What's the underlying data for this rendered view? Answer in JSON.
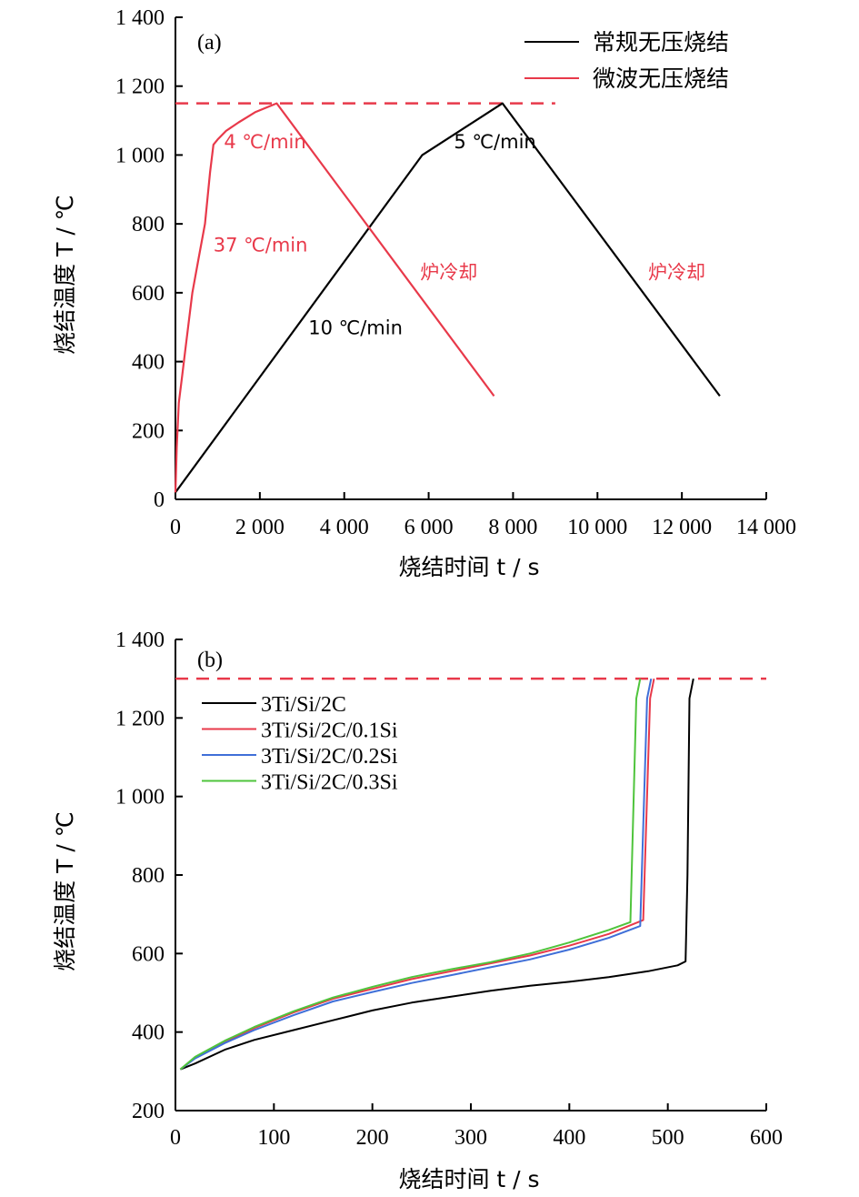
{
  "chart_data": [
    {
      "type": "line",
      "panel_label": "(a)",
      "xlabel": "烧结时间 t / s",
      "ylabel": "烧结温度 T / ℃",
      "xlim": [
        0,
        14000
      ],
      "ylim": [
        0,
        1400
      ],
      "xticks": [
        0,
        2000,
        4000,
        6000,
        8000,
        10000,
        12000,
        14000
      ],
      "xtick_labels": [
        "0",
        "2 000",
        "4 000",
        "6 000",
        "8 000",
        "10 000",
        "12 000",
        "14 000"
      ],
      "yticks": [
        0,
        200,
        400,
        600,
        800,
        1000,
        1200,
        1400
      ],
      "ytick_labels": [
        "0",
        "200",
        "400",
        "600",
        "800",
        "1 000",
        "1 200",
        "1 400"
      ],
      "legend_position": "top-right",
      "reference_line": {
        "y": 1150,
        "x_range": [
          0,
          9000
        ],
        "color": "#e8394a",
        "style": "dashed"
      },
      "series": [
        {
          "name": "常规无压烧结",
          "color": "#000000",
          "x": [
            0,
            5850,
            7750,
            12900
          ],
          "y": [
            20,
            1000,
            1150,
            300
          ]
        },
        {
          "name": "微波无压烧结",
          "color": "#e8394a",
          "x": [
            0,
            30,
            80,
            150,
            250,
            400,
            550,
            700,
            820,
            900,
            1000,
            1200,
            1500,
            1900,
            2400,
            7550
          ],
          "y": [
            20,
            150,
            280,
            350,
            450,
            600,
            700,
            800,
            950,
            1030,
            1045,
            1070,
            1095,
            1125,
            1150,
            300
          ]
        }
      ],
      "annotations": [
        {
          "text": "4 ℃/min",
          "x": 1150,
          "y": 1020,
          "color": "#e8394a"
        },
        {
          "text": "5 ℃/min",
          "x": 6600,
          "y": 1020,
          "color": "#000000"
        },
        {
          "text": "37 ℃/min",
          "x": 900,
          "y": 720,
          "color": "#e8394a"
        },
        {
          "text": "炉冷却",
          "x": 5800,
          "y": 640,
          "color": "#e8394a"
        },
        {
          "text": "炉冷却",
          "x": 11200,
          "y": 640,
          "color": "#e8394a"
        },
        {
          "text": "10 ℃/min",
          "x": 3150,
          "y": 480,
          "color": "#000000"
        }
      ]
    },
    {
      "type": "line",
      "panel_label": "(b)",
      "xlabel": "烧结时间 t / s",
      "ylabel": "烧结温度 T / ℃",
      "xlim": [
        0,
        600
      ],
      "ylim": [
        200,
        1400
      ],
      "xticks": [
        0,
        100,
        200,
        300,
        400,
        500,
        600
      ],
      "xtick_labels": [
        "0",
        "100",
        "200",
        "300",
        "400",
        "500",
        "600"
      ],
      "yticks": [
        200,
        400,
        600,
        800,
        1000,
        1200,
        1400
      ],
      "ytick_labels": [
        "200",
        "400",
        "600",
        "800",
        "1 000",
        "1 200",
        "1 400"
      ],
      "legend_position": "top-left",
      "reference_line": {
        "y": 1300,
        "x_range": [
          0,
          600
        ],
        "color": "#e8394a",
        "style": "dashed"
      },
      "series": [
        {
          "name": "3Ti/Si/2C",
          "color": "#000000",
          "x": [
            5,
            20,
            50,
            80,
            120,
            160,
            200,
            240,
            280,
            320,
            360,
            400,
            440,
            480,
            510,
            518,
            520,
            522,
            526
          ],
          "y": [
            305,
            320,
            355,
            380,
            405,
            430,
            455,
            475,
            490,
            505,
            518,
            528,
            540,
            555,
            570,
            580,
            800,
            1250,
            1300
          ]
        },
        {
          "name": "3Ti/Si/2C/0.1Si",
          "color": "#e8394a",
          "x": [
            5,
            20,
            50,
            80,
            120,
            160,
            200,
            240,
            280,
            320,
            360,
            400,
            440,
            475,
            482,
            486
          ],
          "y": [
            305,
            335,
            375,
            410,
            450,
            485,
            510,
            535,
            555,
            575,
            595,
            620,
            650,
            685,
            1250,
            1300
          ]
        },
        {
          "name": "3Ti/Si/2C/0.2Si",
          "color": "#3f6fd8",
          "x": [
            5,
            20,
            50,
            80,
            120,
            160,
            200,
            240,
            280,
            320,
            360,
            400,
            440,
            472,
            479,
            483
          ],
          "y": [
            305,
            333,
            372,
            405,
            443,
            478,
            502,
            525,
            545,
            565,
            585,
            610,
            640,
            670,
            1250,
            1300
          ]
        },
        {
          "name": "3Ti/Si/2C/0.3Si",
          "color": "#4fc43c",
          "x": [
            5,
            20,
            50,
            80,
            120,
            160,
            200,
            240,
            280,
            320,
            360,
            400,
            440,
            462,
            468,
            472
          ],
          "y": [
            305,
            337,
            378,
            413,
            453,
            488,
            515,
            540,
            560,
            578,
            600,
            628,
            660,
            680,
            1250,
            1300
          ]
        }
      ]
    }
  ]
}
